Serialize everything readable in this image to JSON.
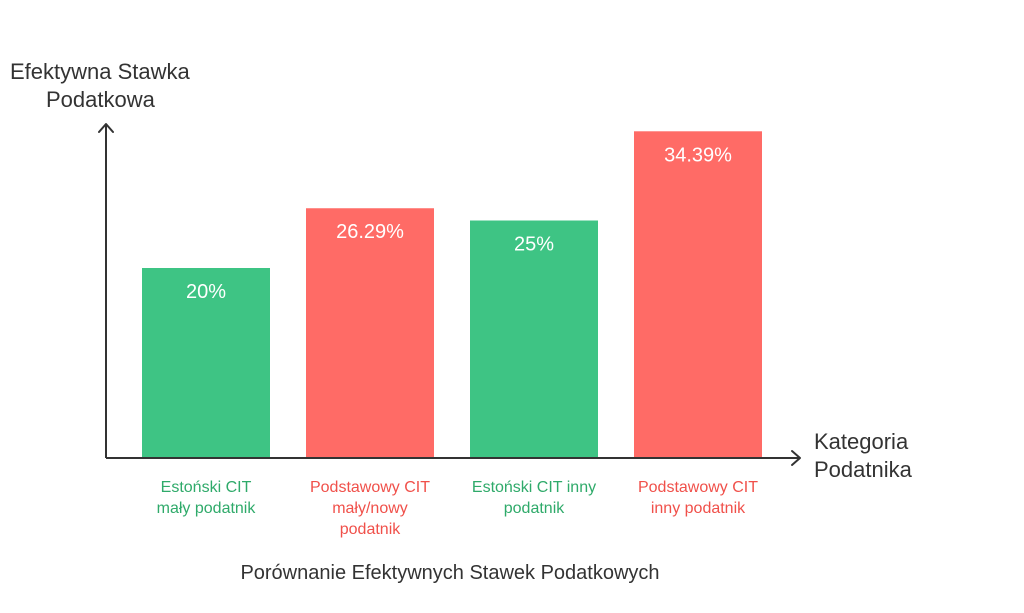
{
  "chart_data": {
    "type": "bar",
    "title": "Porównanie Efektywnych Stawek Podatkowych",
    "ylabel": [
      "Efektywna Stawka",
      "Podatkowa"
    ],
    "xlabel": [
      "Kategoria",
      "Podatnika"
    ],
    "ylim": [
      0,
      40
    ],
    "grid": false,
    "categories": [
      "Estoński CIT mały podatnik",
      "Podstawowy CIT mały/nowy podatnik",
      "Estoński CIT inny podatnik",
      "Podstawowy CIT inny podatnik"
    ],
    "category_lines": [
      [
        "Estoński CIT",
        "mały podatnik"
      ],
      [
        "Podstawowy CIT",
        "mały/nowy",
        "podatnik"
      ],
      [
        "Estoński CIT inny",
        "podatnik"
      ],
      [
        "Podstawowy CIT",
        "inny podatnik"
      ]
    ],
    "values": [
      20,
      26.29,
      25,
      34.39
    ],
    "value_labels": [
      "20%",
      "26.29%",
      "25%",
      "34.39%"
    ],
    "bar_colors": [
      "#3ec484",
      "#ff6b66",
      "#3ec484",
      "#ff6b66"
    ],
    "label_colors": [
      "#2faa6a",
      "#f0504a",
      "#2faa6a",
      "#f0504a"
    ]
  }
}
